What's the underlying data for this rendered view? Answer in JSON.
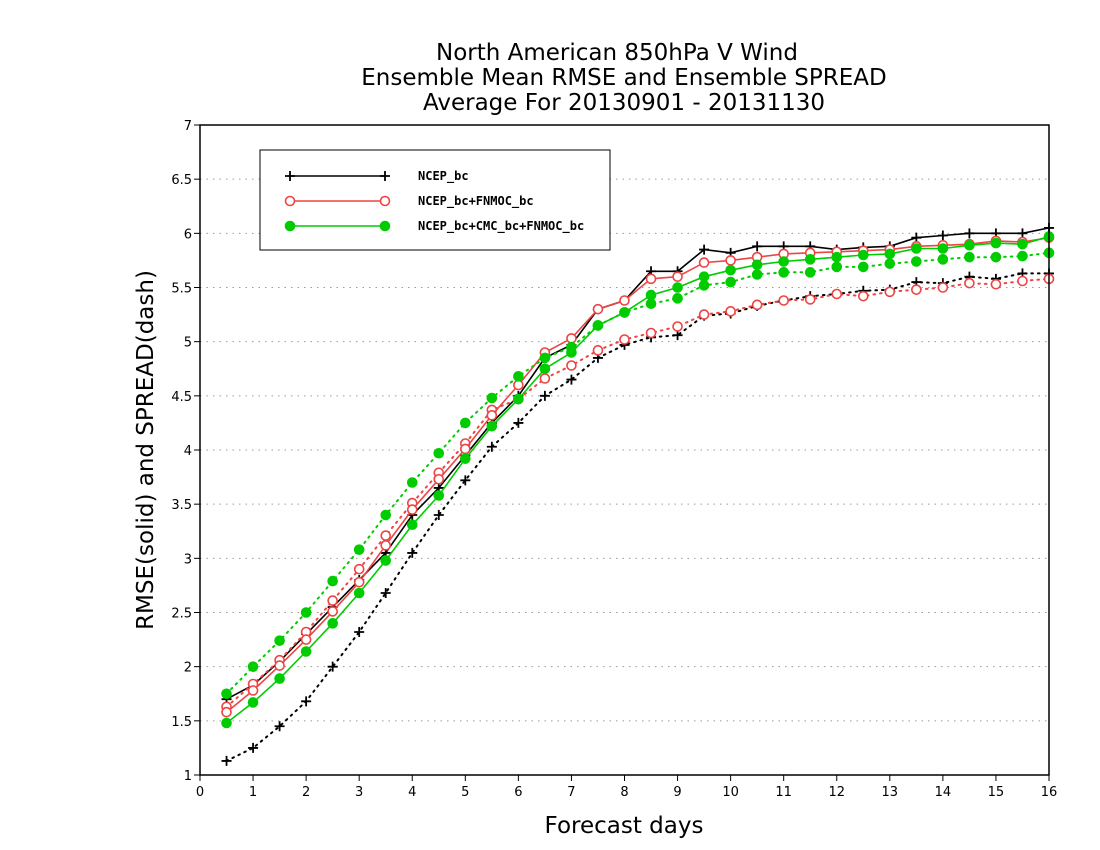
{
  "chart_data": {
    "type": "line",
    "title": [
      "North American 850hPa V Wind",
      "Ensemble Mean RMSE and Ensemble SPREAD",
      "Average For 20130901 - 20131130"
    ],
    "xlabel": "Forecast days",
    "ylabel": "RMSE(solid) and SPREAD(dash)",
    "xlim": [
      0,
      16
    ],
    "ylim": [
      1,
      7
    ],
    "xticks": [
      0,
      1,
      2,
      3,
      4,
      5,
      6,
      7,
      8,
      9,
      10,
      11,
      12,
      13,
      14,
      15,
      16
    ],
    "yticks": [
      1,
      1.5,
      2,
      2.5,
      3,
      3.5,
      4,
      4.5,
      5,
      5.5,
      6,
      6.5,
      7
    ],
    "grid": "horizontal dotted",
    "legend_position": "top-left",
    "x": [
      0.5,
      1,
      1.5,
      2,
      2.5,
      3,
      3.5,
      4,
      4.5,
      5,
      5.5,
      6,
      6.5,
      7,
      7.5,
      8,
      8.5,
      9,
      9.5,
      10,
      10.5,
      11,
      11.5,
      12,
      12.5,
      13,
      13.5,
      14,
      14.5,
      15,
      15.5,
      16
    ],
    "series": [
      {
        "name": "NCEP_bc",
        "color": "#000000",
        "marker": "plus",
        "rmse": [
          1.7,
          1.83,
          2.05,
          2.3,
          2.55,
          2.8,
          3.05,
          3.4,
          3.65,
          3.95,
          4.25,
          4.5,
          4.85,
          4.97,
          5.3,
          5.38,
          5.65,
          5.65,
          5.85,
          5.82,
          5.88,
          5.88,
          5.88,
          5.85,
          5.87,
          5.88,
          5.96,
          5.98,
          6.0,
          6.0,
          6.0,
          6.05
        ],
        "spread": [
          1.13,
          1.25,
          1.45,
          1.68,
          2.0,
          2.32,
          2.68,
          3.05,
          3.4,
          3.72,
          4.03,
          4.25,
          4.5,
          4.65,
          4.85,
          4.97,
          5.04,
          5.06,
          5.24,
          5.26,
          5.33,
          5.38,
          5.42,
          5.44,
          5.47,
          5.48,
          5.55,
          5.54,
          5.6,
          5.58,
          5.63,
          5.63
        ]
      },
      {
        "name": "NCEP_bc+FNMOC_bc",
        "color": "#ee4444",
        "marker": "open-circle",
        "rmse": [
          1.58,
          1.78,
          2.01,
          2.25,
          2.51,
          2.78,
          3.12,
          3.45,
          3.73,
          4.01,
          4.32,
          4.6,
          4.9,
          5.03,
          5.3,
          5.38,
          5.58,
          5.6,
          5.73,
          5.75,
          5.78,
          5.81,
          5.82,
          5.83,
          5.84,
          5.85,
          5.88,
          5.89,
          5.9,
          5.93,
          5.92,
          5.96
        ],
        "spread": [
          1.63,
          1.84,
          2.06,
          2.32,
          2.61,
          2.9,
          3.21,
          3.51,
          3.79,
          4.06,
          4.37,
          4.47,
          4.66,
          4.78,
          4.92,
          5.02,
          5.08,
          5.14,
          5.25,
          5.28,
          5.34,
          5.38,
          5.39,
          5.44,
          5.42,
          5.46,
          5.48,
          5.5,
          5.54,
          5.53,
          5.56,
          5.58
        ]
      },
      {
        "name": "NCEP_bc+CMC_bc+FNMOC_bc",
        "color": "#00cc00",
        "marker": "filled-circle",
        "rmse": [
          1.48,
          1.67,
          1.89,
          2.14,
          2.4,
          2.68,
          2.98,
          3.31,
          3.58,
          3.92,
          4.22,
          4.47,
          4.75,
          4.9,
          5.15,
          5.27,
          5.43,
          5.5,
          5.6,
          5.66,
          5.71,
          5.74,
          5.76,
          5.78,
          5.8,
          5.81,
          5.86,
          5.86,
          5.89,
          5.91,
          5.9,
          5.97
        ],
        "spread": [
          1.75,
          2.0,
          2.24,
          2.5,
          2.79,
          3.08,
          3.4,
          3.7,
          3.97,
          4.25,
          4.48,
          4.68,
          4.85,
          4.95,
          5.15,
          5.27,
          5.35,
          5.4,
          5.52,
          5.55,
          5.62,
          5.64,
          5.64,
          5.69,
          5.69,
          5.72,
          5.74,
          5.76,
          5.78,
          5.78,
          5.79,
          5.82
        ]
      }
    ]
  }
}
